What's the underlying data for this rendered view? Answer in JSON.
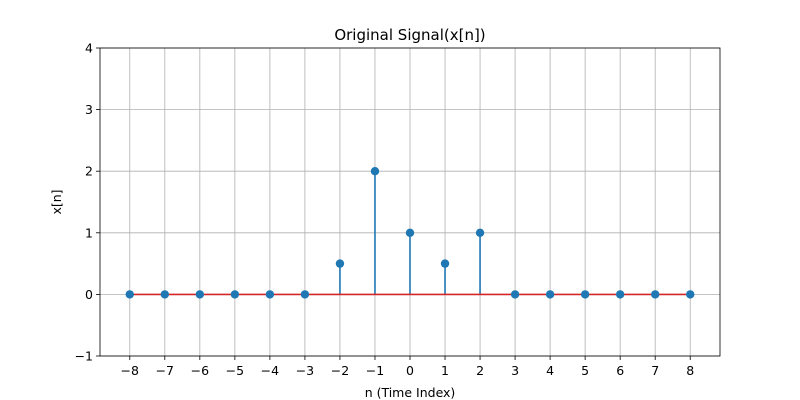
{
  "chart_data": {
    "type": "stem",
    "title": "Original Signal(x[n])",
    "xlabel": "n (Time Index)",
    "ylabel": "x[n]",
    "x": [
      -8,
      -7,
      -6,
      -5,
      -4,
      -3,
      -2,
      -1,
      0,
      1,
      2,
      3,
      4,
      5,
      6,
      7,
      8
    ],
    "values": [
      0,
      0,
      0,
      0,
      0,
      0,
      0.5,
      2,
      1,
      0.5,
      1,
      0,
      0,
      0,
      0,
      0,
      0
    ],
    "xlim": [
      -8.85,
      8.85
    ],
    "ylim": [
      -1,
      4
    ],
    "xticks": [
      -8,
      -7,
      -6,
      -5,
      -4,
      -3,
      -2,
      -1,
      0,
      1,
      2,
      3,
      4,
      5,
      6,
      7,
      8
    ],
    "yticks": [
      -1,
      0,
      1,
      2,
      3,
      4
    ],
    "xtick_labels": [
      "−8",
      "−7",
      "−6",
      "−5",
      "−4",
      "−3",
      "−2",
      "−1",
      "0",
      "1",
      "2",
      "3",
      "4",
      "5",
      "6",
      "7",
      "8"
    ],
    "ytick_labels": [
      "−1",
      "0",
      "1",
      "2",
      "3",
      "4"
    ],
    "grid": true,
    "colors": {
      "marker": "#1f77b4",
      "stem": "#1f77b4",
      "baseline": "#d62728"
    }
  }
}
